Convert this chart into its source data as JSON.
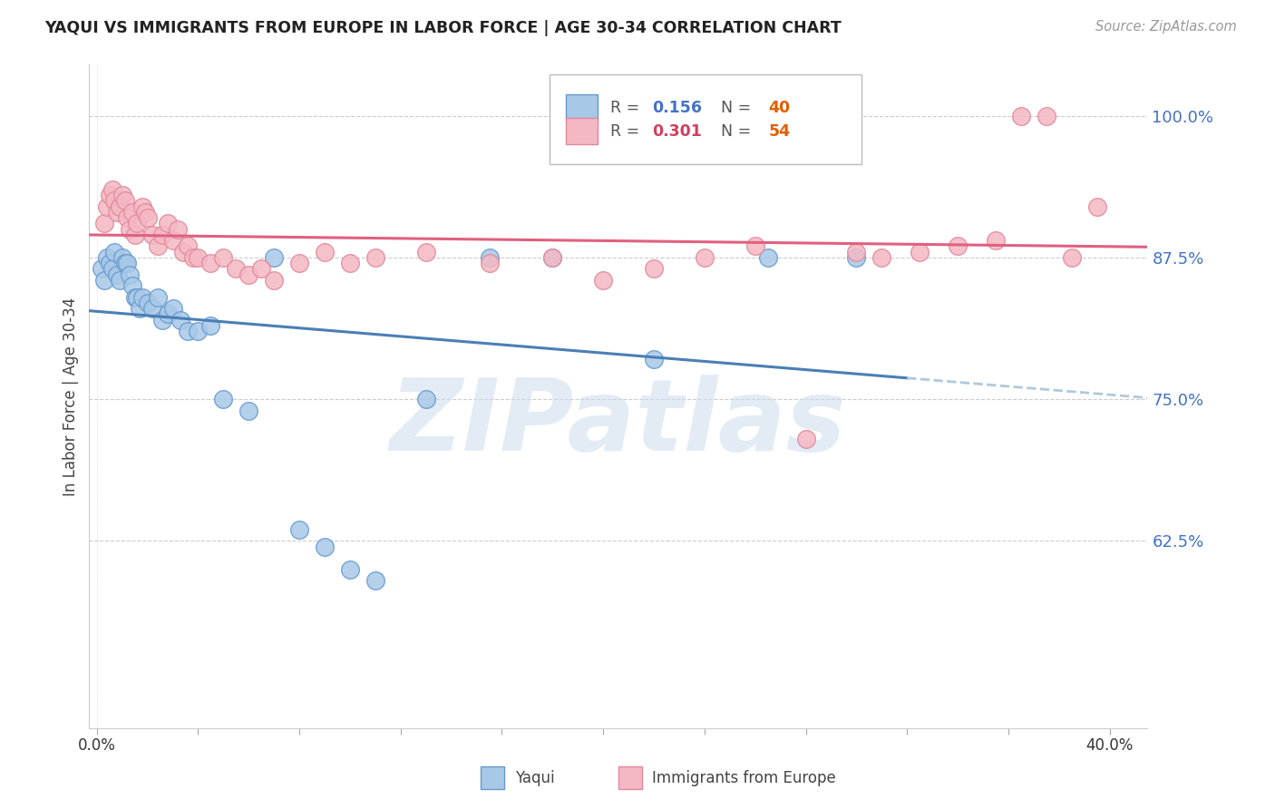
{
  "title": "YAQUI VS IMMIGRANTS FROM EUROPE IN LABOR FORCE | AGE 30-34 CORRELATION CHART",
  "source": "Source: ZipAtlas.com",
  "ylabel": "In Labor Force | Age 30-34",
  "ymin": 0.46,
  "ymax": 1.045,
  "xmin": -0.003,
  "xmax": 0.415,
  "watermark": "ZIPatlas",
  "series1_label": "Yaqui",
  "series2_label": "Immigrants from Europe",
  "series1_color": "#a8c8e8",
  "series2_color": "#f4b8c4",
  "series1_edge": "#6699cc",
  "series2_edge": "#e08898",
  "series1_line_color": "#4a7fb5",
  "series2_line_color": "#e06080",
  "dashed_line_color": "#b0c8dc",
  "R1": 0.156,
  "N1": 40,
  "R2": 0.301,
  "N2": 54,
  "ytick_vals": [
    0.625,
    0.75,
    0.875,
    1.0
  ],
  "ytick_labels": [
    "62.5%",
    "75.0%",
    "87.5%",
    "100.0%"
  ],
  "yaqui_x": [
    0.002,
    0.003,
    0.004,
    0.005,
    0.006,
    0.007,
    0.008,
    0.009,
    0.01,
    0.011,
    0.012,
    0.013,
    0.014,
    0.015,
    0.016,
    0.017,
    0.018,
    0.02,
    0.022,
    0.024,
    0.026,
    0.028,
    0.03,
    0.033,
    0.036,
    0.04,
    0.045,
    0.05,
    0.06,
    0.07,
    0.08,
    0.09,
    0.1,
    0.11,
    0.13,
    0.155,
    0.18,
    0.22,
    0.265,
    0.3
  ],
  "yaqui_y": [
    0.865,
    0.855,
    0.875,
    0.87,
    0.865,
    0.88,
    0.86,
    0.855,
    0.875,
    0.87,
    0.87,
    0.86,
    0.85,
    0.84,
    0.84,
    0.83,
    0.84,
    0.835,
    0.83,
    0.84,
    0.82,
    0.825,
    0.83,
    0.82,
    0.81,
    0.81,
    0.815,
    0.75,
    0.74,
    0.875,
    0.635,
    0.62,
    0.6,
    0.59,
    0.75,
    0.875,
    0.875,
    0.785,
    0.875,
    0.875
  ],
  "europe_x": [
    0.003,
    0.004,
    0.005,
    0.006,
    0.007,
    0.008,
    0.009,
    0.01,
    0.011,
    0.012,
    0.013,
    0.014,
    0.015,
    0.016,
    0.018,
    0.019,
    0.02,
    0.022,
    0.024,
    0.026,
    0.028,
    0.03,
    0.032,
    0.034,
    0.036,
    0.038,
    0.04,
    0.045,
    0.05,
    0.055,
    0.06,
    0.065,
    0.07,
    0.08,
    0.09,
    0.1,
    0.11,
    0.13,
    0.155,
    0.18,
    0.2,
    0.22,
    0.24,
    0.26,
    0.28,
    0.3,
    0.31,
    0.325,
    0.34,
    0.355,
    0.365,
    0.375,
    0.385,
    0.395
  ],
  "europe_y": [
    0.905,
    0.92,
    0.93,
    0.935,
    0.925,
    0.915,
    0.92,
    0.93,
    0.925,
    0.91,
    0.9,
    0.915,
    0.895,
    0.905,
    0.92,
    0.915,
    0.91,
    0.895,
    0.885,
    0.895,
    0.905,
    0.89,
    0.9,
    0.88,
    0.885,
    0.875,
    0.875,
    0.87,
    0.875,
    0.865,
    0.86,
    0.865,
    0.855,
    0.87,
    0.88,
    0.87,
    0.875,
    0.88,
    0.87,
    0.875,
    0.855,
    0.865,
    0.875,
    0.885,
    0.715,
    0.88,
    0.875,
    0.88,
    0.885,
    0.89,
    1.0,
    1.0,
    0.875,
    0.92
  ]
}
